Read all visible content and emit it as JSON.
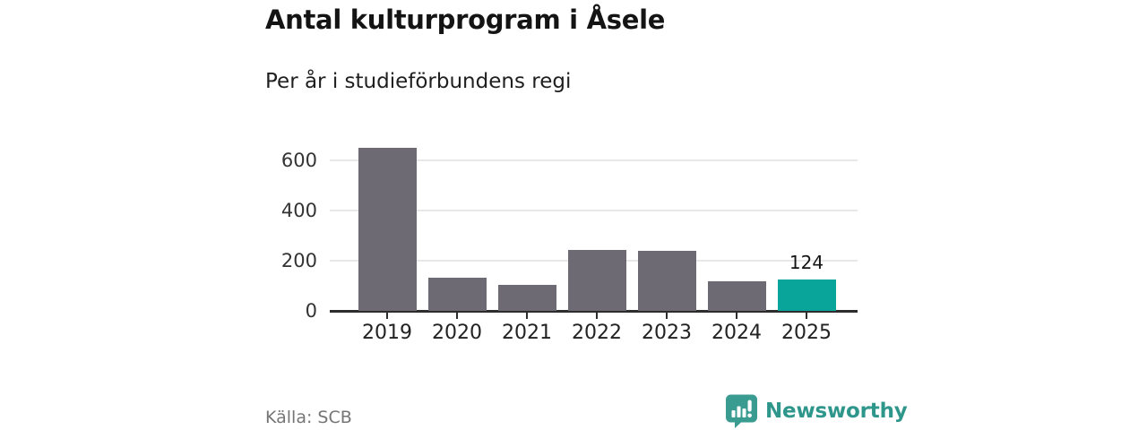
{
  "header": {
    "title": "Antal kulturprogram i Åsele",
    "subtitle": "Per år i studieförbundens regi"
  },
  "chart_data": {
    "type": "bar",
    "title": "Antal kulturprogram i Åsele",
    "subtitle": "Per år i studieförbundens regi",
    "categories": [
      "2019",
      "2020",
      "2021",
      "2022",
      "2023",
      "2024",
      "2025"
    ],
    "values": [
      650,
      133,
      104,
      242,
      239,
      119,
      124
    ],
    "xlabel": "",
    "ylabel": "",
    "ylim": [
      0,
      700
    ],
    "yticks": [
      0,
      200,
      400,
      600
    ],
    "grid": true,
    "legend": "none",
    "bar_color": "#6d6a74",
    "highlight_color": "#0aa59a",
    "highlight_index": 6,
    "highlight_label": "124"
  },
  "footer": {
    "source_label": "Källa: SCB",
    "brand_name": "Newsworthy"
  },
  "colors": {
    "accent_teal": "#0aa59a",
    "brand_teal": "#2e968b",
    "bar_gray": "#6d6a74",
    "axis": "#2d2d2d",
    "gridline": "#e8e8e8",
    "source_text": "#757575"
  }
}
